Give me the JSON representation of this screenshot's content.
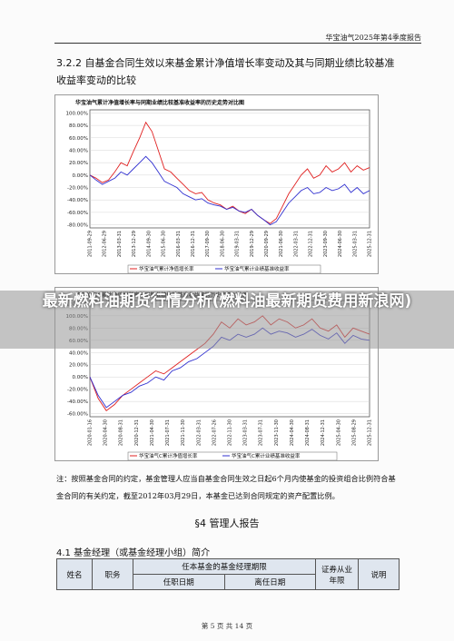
{
  "header": {
    "report_title": "华宝油气2025年第4季度报告"
  },
  "section": {
    "title": "3.2.2 自基金合同生效以来基金累计净值增长率变动及其与同期业绩比较基准收益率变动的比较"
  },
  "chart_data": [
    {
      "type": "line",
      "title": "华宝油气累计净值增长率与同期业绩比较基准收益率的历史走势对比图",
      "y_ticks": [
        "100.00%",
        "80.00%",
        "60.00%",
        "40.00%",
        "20.00%",
        "0.00%",
        "-20.00%",
        "-40.00%",
        "-60.00%",
        "-80.00%"
      ],
      "ylim": [
        -85,
        105
      ],
      "x_ticks": [
        "2011-09-29",
        "2012-06-29",
        "2013-03-31",
        "2013-12-29",
        "2014-09-30",
        "2015-06-30",
        "2016-03-31",
        "2016-12-31",
        "2017-09-30",
        "2018-06-30",
        "2019-03-31",
        "2019-12-29",
        "2020-09-29",
        "2021-06-30",
        "2022-03-31",
        "2022-12-31",
        "2023-09-30",
        "2024-06-30",
        "2025-03-31",
        "2025-12-31"
      ],
      "series": [
        {
          "name": "华宝油气累计净值增长率",
          "color": "#e02020",
          "values": [
            0,
            -5,
            -12,
            -8,
            5,
            20,
            15,
            38,
            60,
            85,
            70,
            40,
            10,
            5,
            -5,
            -15,
            -25,
            -30,
            -28,
            -40,
            -45,
            -48,
            -55,
            -50,
            -58,
            -62,
            -55,
            -65,
            -72,
            -78,
            -70,
            -50,
            -30,
            -15,
            0,
            10,
            -5,
            0,
            15,
            5,
            10,
            20,
            5,
            15,
            8,
            12
          ]
        },
        {
          "name": "华宝油气累计业绩基准收益率",
          "color": "#3030d0",
          "values": [
            0,
            -8,
            -15,
            -10,
            -5,
            5,
            0,
            10,
            20,
            30,
            20,
            5,
            -10,
            -15,
            -20,
            -30,
            -35,
            -40,
            -38,
            -45,
            -48,
            -50,
            -55,
            -52,
            -58,
            -60,
            -55,
            -65,
            -72,
            -80,
            -75,
            -60,
            -45,
            -35,
            -25,
            -20,
            -30,
            -28,
            -20,
            -25,
            -22,
            -15,
            -28,
            -20,
            -30,
            -25
          ]
        }
      ]
    },
    {
      "type": "line",
      "title": "华宝油气C累计净值增长率与同期业绩比较基准收益率的历史走势对比图",
      "y_ticks": [
        "120.00%",
        "100.00%",
        "80.00%",
        "60.00%",
        "40.00%",
        "20.00%",
        "0.00%",
        "-20.00%",
        "-40.00%",
        "-60.00%"
      ],
      "ylim": [
        -65,
        125
      ],
      "x_ticks": [
        "2020-01-16",
        "2020-04-30",
        "2020-08-31",
        "2020-12-31",
        "2021-04-30",
        "2021-07-31",
        "2021-11-30",
        "2022-03-31",
        "2022-07-26",
        "2022-11-30",
        "2023-03-31",
        "2023-07-31",
        "2023-11-30",
        "2024-04-30",
        "2024-08-31",
        "2024-12-31",
        "2025-04-30",
        "2025-08-29",
        "2025-12-31"
      ],
      "series": [
        {
          "name": "华宝油气C累计净值增长率",
          "color": "#e02020",
          "values": [
            0,
            -35,
            -55,
            -45,
            -30,
            -20,
            -10,
            0,
            10,
            5,
            15,
            25,
            35,
            45,
            55,
            70,
            90,
            80,
            95,
            85,
            90,
            100,
            85,
            95,
            90,
            80,
            85,
            95,
            80,
            75,
            85,
            65,
            80,
            75,
            70
          ]
        },
        {
          "name": "华宝油气C累计业绩基准收益率",
          "color": "#3030d0",
          "values": [
            0,
            -30,
            -50,
            -40,
            -30,
            -25,
            -15,
            -10,
            0,
            -5,
            10,
            15,
            25,
            30,
            40,
            50,
            65,
            60,
            70,
            65,
            70,
            80,
            70,
            75,
            72,
            65,
            70,
            78,
            68,
            62,
            72,
            55,
            68,
            62,
            60
          ]
        }
      ]
    }
  ],
  "overlay": {
    "text": "最新燃料油期货行情分析(燃料油最新期货费用新浪网)"
  },
  "note": {
    "text": "注：按照基金合同的约定，基金管理人应当自基金合同生效之日起6个月内使基金的投资组合比例符合基金合同的有关约定，截至2012年03月29日，本基金已达到合同规定的资产配置比例。"
  },
  "section4": {
    "title": "§4 管理人报告",
    "subtitle": "4.1 基金经理（或基金经理小组）简介"
  },
  "table": {
    "name": "姓名",
    "role": "职务",
    "term": "任本基金的基金经理期限",
    "start": "任职日期",
    "end": "离任日期",
    "years": "证券从业年限",
    "desc": "说明"
  },
  "footer": {
    "page": "第 5 页 共 14 页"
  }
}
